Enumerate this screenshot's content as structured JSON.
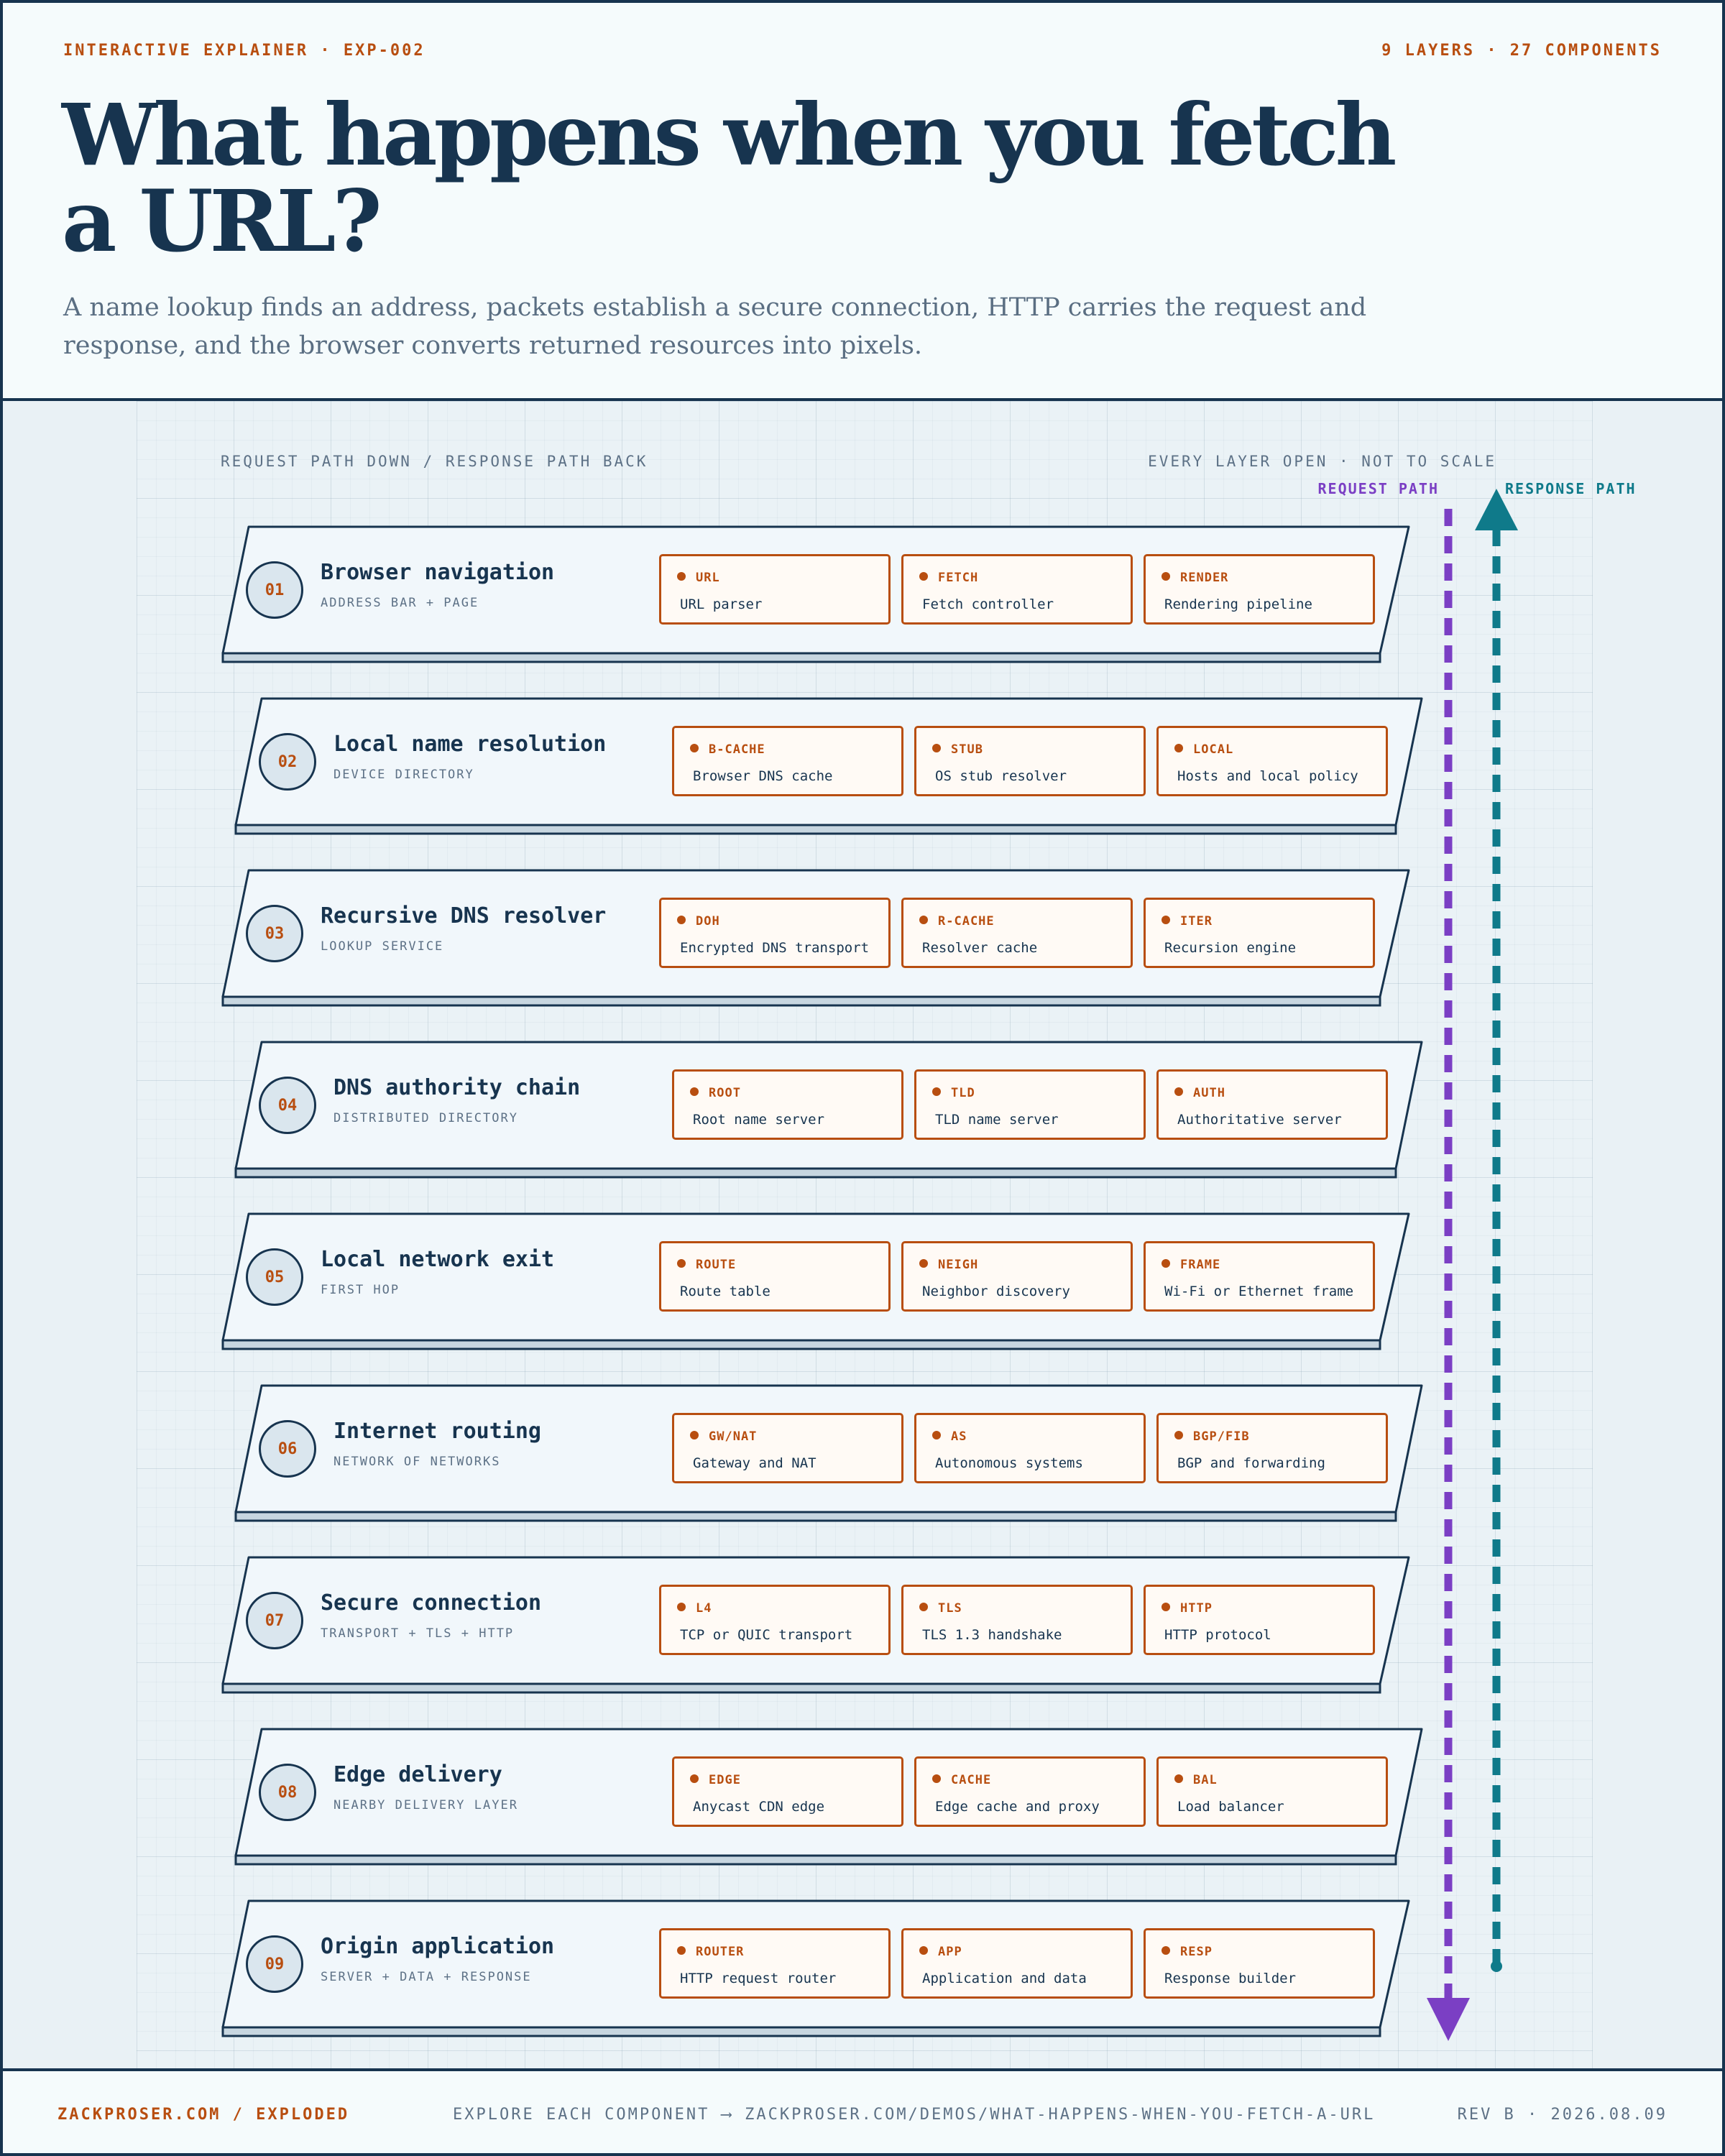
{
  "header": {
    "kicker_left": "INTERACTIVE EXPLAINER · EXP-002",
    "kicker_right": "9 LAYERS · 27 COMPONENTS",
    "title": "What happens when you fetch a URL?",
    "subtitle": "A name lookup finds an address, packets establish a secure connection, HTTP carries the request and response, and the browser converts returned resources into pixels."
  },
  "diagram": {
    "caption_left": "REQUEST PATH DOWN / RESPONSE PATH BACK",
    "caption_right": "EVERY LAYER OPEN · NOT TO SCALE",
    "request_label": "REQUEST PATH",
    "response_label": "RESPONSE PATH",
    "colors": {
      "request": "#7b3fc4",
      "response": "#0f7a8a",
      "accent": "#b84e10",
      "ink": "#17344f"
    },
    "layers": [
      {
        "number": "01",
        "name": "Browser navigation",
        "subtitle": "ADDRESS BAR + PAGE",
        "components": [
          {
            "code": "URL",
            "name": "URL parser"
          },
          {
            "code": "FETCH",
            "name": "Fetch controller"
          },
          {
            "code": "RENDER",
            "name": "Rendering pipeline"
          }
        ]
      },
      {
        "number": "02",
        "name": "Local name resolution",
        "subtitle": "DEVICE DIRECTORY",
        "components": [
          {
            "code": "B-CACHE",
            "name": "Browser DNS cache"
          },
          {
            "code": "STUB",
            "name": "OS stub resolver"
          },
          {
            "code": "LOCAL",
            "name": "Hosts and local policy"
          }
        ]
      },
      {
        "number": "03",
        "name": "Recursive DNS resolver",
        "subtitle": "LOOKUP SERVICE",
        "components": [
          {
            "code": "DOH",
            "name": "Encrypted DNS transport"
          },
          {
            "code": "R-CACHE",
            "name": "Resolver cache"
          },
          {
            "code": "ITER",
            "name": "Recursion engine"
          }
        ]
      },
      {
        "number": "04",
        "name": "DNS authority chain",
        "subtitle": "DISTRIBUTED DIRECTORY",
        "components": [
          {
            "code": "ROOT",
            "name": "Root name server"
          },
          {
            "code": "TLD",
            "name": "TLD name server"
          },
          {
            "code": "AUTH",
            "name": "Authoritative server"
          }
        ]
      },
      {
        "number": "05",
        "name": "Local network exit",
        "subtitle": "FIRST HOP",
        "components": [
          {
            "code": "ROUTE",
            "name": "Route table"
          },
          {
            "code": "NEIGH",
            "name": "Neighbor discovery"
          },
          {
            "code": "FRAME",
            "name": "Wi-Fi or Ethernet frame"
          }
        ]
      },
      {
        "number": "06",
        "name": "Internet routing",
        "subtitle": "NETWORK OF NETWORKS",
        "components": [
          {
            "code": "GW/NAT",
            "name": "Gateway and NAT"
          },
          {
            "code": "AS",
            "name": "Autonomous systems"
          },
          {
            "code": "BGP/FIB",
            "name": "BGP and forwarding"
          }
        ]
      },
      {
        "number": "07",
        "name": "Secure connection",
        "subtitle": "TRANSPORT + TLS + HTTP",
        "components": [
          {
            "code": "L4",
            "name": "TCP or QUIC transport"
          },
          {
            "code": "TLS",
            "name": "TLS 1.3 handshake"
          },
          {
            "code": "HTTP",
            "name": "HTTP protocol"
          }
        ]
      },
      {
        "number": "08",
        "name": "Edge delivery",
        "subtitle": "NEARBY DELIVERY LAYER",
        "components": [
          {
            "code": "EDGE",
            "name": "Anycast CDN edge"
          },
          {
            "code": "CACHE",
            "name": "Edge cache and proxy"
          },
          {
            "code": "BAL",
            "name": "Load balancer"
          }
        ]
      },
      {
        "number": "09",
        "name": "Origin application",
        "subtitle": "SERVER + DATA + RESPONSE",
        "components": [
          {
            "code": "ROUTER",
            "name": "HTTP request router"
          },
          {
            "code": "APP",
            "name": "Application and data"
          },
          {
            "code": "RESP",
            "name": "Response builder"
          }
        ]
      }
    ]
  },
  "footer": {
    "left": "ZACKPROSER.COM / EXPLODED",
    "center": "EXPLORE EACH COMPONENT ⟶ ZACKPROSER.COM/DEMOS/WHAT-HAPPENS-WHEN-YOU-FETCH-A-URL",
    "right": "REV B · 2026.08.09"
  }
}
